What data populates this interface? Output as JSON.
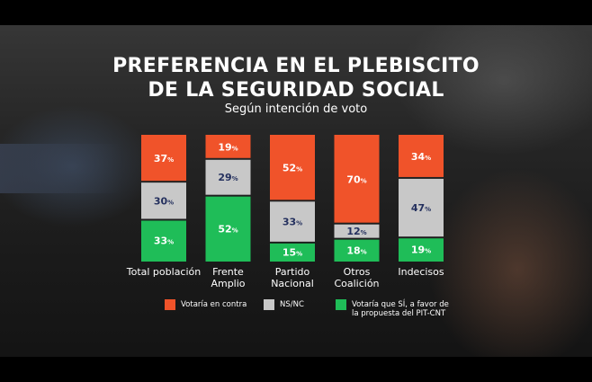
{
  "title_line1": "PREFERENCIA EN EL PLEBISCITO",
  "title_line2": "DE LA SEGURIDAD SOCIAL",
  "subtitle": "Según intención de voto",
  "colors": {
    "contra": "#f0532a",
    "nsnc": "#c8c8c8",
    "favor": "#1fbd58",
    "label_dark": "#24305e",
    "label_light": "#ffffff"
  },
  "chart_data": {
    "type": "bar",
    "stacked": true,
    "orientation": "vertical",
    "categories": [
      [
        "Total población"
      ],
      [
        "Frente",
        "Amplio"
      ],
      [
        "Partido",
        "Nacional"
      ],
      [
        "Otros",
        "Coalición"
      ],
      [
        "Indecisos"
      ]
    ],
    "series": [
      {
        "key": "favor",
        "name": "Votaría que SÍ, a favor de la propuesta del PIT-CNT",
        "values": [
          33,
          52,
          15,
          18,
          19
        ]
      },
      {
        "key": "nsnc",
        "name": "NS/NC",
        "values": [
          30,
          29,
          33,
          12,
          47
        ]
      },
      {
        "key": "contra",
        "name": "Votaría en contra",
        "values": [
          37,
          19,
          52,
          70,
          34
        ]
      }
    ],
    "value_suffix": "%",
    "ylim": [
      0,
      100
    ]
  },
  "legend": [
    {
      "key": "contra",
      "lines": [
        "Votaría en contra"
      ]
    },
    {
      "key": "nsnc",
      "lines": [
        "NS/NC"
      ]
    },
    {
      "key": "favor",
      "lines": [
        "Votaría que SÍ, a favor de",
        "la propuesta del PIT-CNT"
      ]
    }
  ]
}
